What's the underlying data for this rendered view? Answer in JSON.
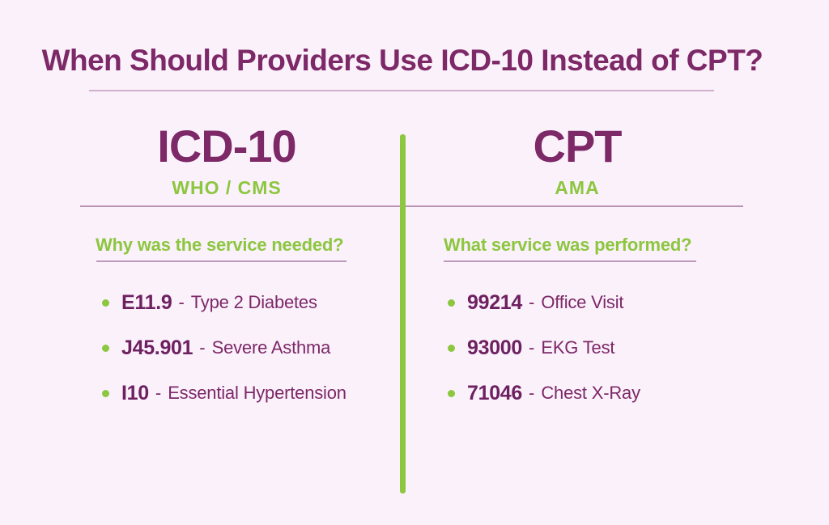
{
  "page": {
    "dash": "-",
    "colors": {
      "background": "#FAF1FB",
      "purple": "#7D2867",
      "purple_dark": "#6E2160",
      "green": "#8DC63F",
      "rule": "#A98FB3"
    }
  },
  "title": {
    "text": "When Should Providers Use ICD-10 Instead of CPT?"
  },
  "columns": [
    {
      "heading": "ICD-10",
      "subheading": "WHO / CMS",
      "question": "Why was the service needed?",
      "items": [
        {
          "code": "E11.9",
          "description": "Type 2 Diabetes"
        },
        {
          "code": "J45.901",
          "description": "Severe Asthma"
        },
        {
          "code": "I10",
          "description": "Essential Hypertension"
        }
      ]
    },
    {
      "heading": "CPT",
      "subheading": "AMA",
      "question": "What service was performed?",
      "items": [
        {
          "code": "99214",
          "description": "Office Visit"
        },
        {
          "code": "93000",
          "description": "EKG Test"
        },
        {
          "code": "71046",
          "description": "Chest X-Ray"
        }
      ]
    }
  ]
}
